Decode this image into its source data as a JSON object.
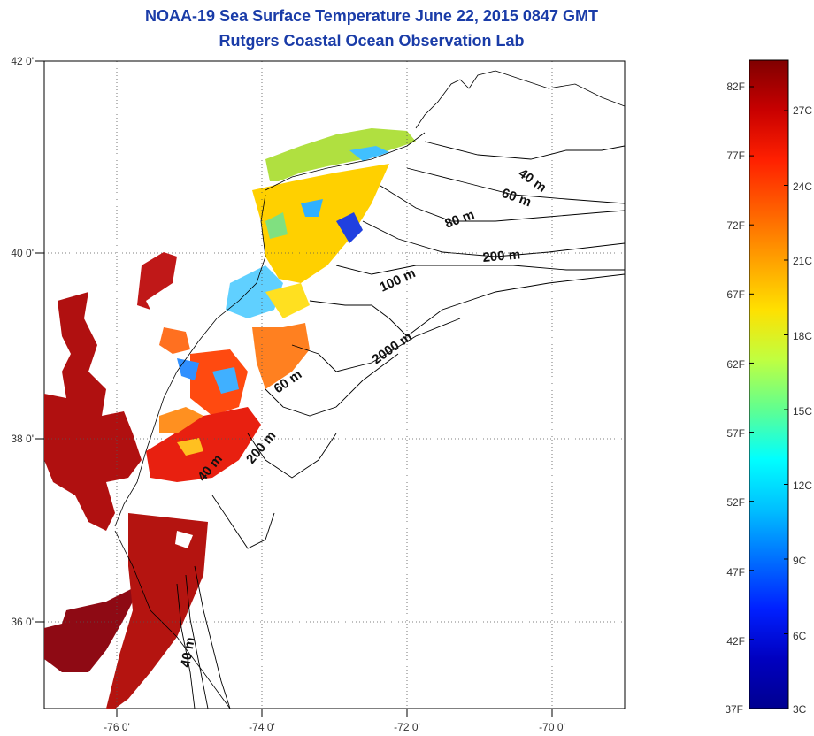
{
  "header": {
    "title": "NOAA-19 Sea Surface Temperature June 22, 2015 0847 GMT",
    "subtitle": "Rutgers Coastal Ocean Observation Lab"
  },
  "axes": {
    "lon_labels": [
      "-76 0'",
      "-74 0'",
      "-72 0'",
      "-70 0'"
    ],
    "lat_labels": [
      "42 0'",
      "40 0'",
      "38 0'",
      "36 0'"
    ],
    "lon_range": [
      -77.0,
      -69.0
    ],
    "lat_range": [
      35.0,
      42.0
    ],
    "grid": "dotted"
  },
  "depth_labels": [
    "40 m",
    "60 m",
    "80 m",
    "200 m",
    "100 m",
    "2000 m",
    "60 m",
    "40 m",
    "200 m",
    "40 m"
  ],
  "colorbar": {
    "fahrenheit": [
      "82F",
      "77F",
      "72F",
      "67F",
      "62F",
      "57F",
      "52F",
      "47F",
      "42F",
      "37F"
    ],
    "celsius": [
      "27C",
      "24C",
      "21C",
      "18C",
      "15C",
      "12C",
      "9C",
      "6C",
      "3C"
    ],
    "colors": [
      "#800000",
      "#c80000",
      "#ff2000",
      "#ff6000",
      "#ffa000",
      "#ffe000",
      "#c0ff40",
      "#60ff90",
      "#00ffff",
      "#00c0ff",
      "#0070ff",
      "#0020ff",
      "#0000c0",
      "#000090"
    ]
  }
}
